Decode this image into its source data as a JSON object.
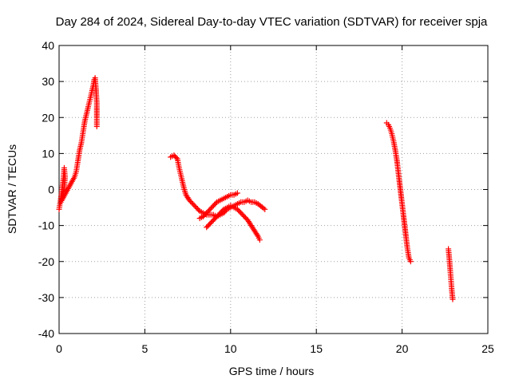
{
  "chart_data": {
    "type": "scatter",
    "title": "Day 284 of 2024, Sidereal Day-to-day VTEC variation (SDTVAR) for receiver spja",
    "xlabel": "GPS time / hours",
    "ylabel": "SDTVAR / TECUs",
    "xlim": [
      0,
      25
    ],
    "ylim": [
      -40,
      40
    ],
    "xticks": [
      0,
      5,
      10,
      15,
      20,
      25
    ],
    "yticks": [
      -40,
      -30,
      -20,
      -10,
      0,
      10,
      20,
      30,
      40
    ],
    "grid": true,
    "marker": "+",
    "color": "#ff0000",
    "series": [
      {
        "points": [
          [
            0.0,
            -5.5
          ],
          [
            0.05,
            -4
          ],
          [
            0.1,
            -2.5
          ],
          [
            0.15,
            -1
          ],
          [
            0.2,
            1
          ],
          [
            0.25,
            3
          ],
          [
            0.3,
            6
          ],
          [
            0.35,
            3.5
          ],
          [
            0.3,
            0.5
          ],
          [
            0.2,
            -2
          ],
          [
            0.1,
            -3.5
          ],
          [
            0.9,
            3.5
          ],
          [
            1.0,
            5
          ],
          [
            1.1,
            8
          ],
          [
            1.2,
            11
          ],
          [
            1.3,
            13
          ],
          [
            1.4,
            16
          ],
          [
            1.5,
            19
          ],
          [
            1.6,
            21
          ],
          [
            1.7,
            23
          ],
          [
            1.8,
            25
          ],
          [
            1.9,
            27
          ],
          [
            2.0,
            29
          ],
          [
            2.05,
            30.5
          ],
          [
            2.1,
            31
          ],
          [
            2.15,
            28
          ],
          [
            2.2,
            24
          ],
          [
            2.2,
            20
          ],
          [
            2.2,
            17.5
          ],
          [
            6.5,
            9
          ],
          [
            6.7,
            9.5
          ],
          [
            6.9,
            8.5
          ],
          [
            7.0,
            6
          ],
          [
            7.1,
            4
          ],
          [
            7.2,
            2
          ],
          [
            7.3,
            0
          ],
          [
            7.4,
            -1.5
          ],
          [
            7.6,
            -3
          ],
          [
            7.8,
            -4
          ],
          [
            8.0,
            -5
          ],
          [
            8.2,
            -6
          ],
          [
            8.4,
            -6.5
          ],
          [
            8.6,
            -7
          ],
          [
            8.8,
            -7
          ],
          [
            9.0,
            -7
          ],
          [
            9.2,
            -7.5
          ],
          [
            9.4,
            -7
          ],
          [
            9.6,
            -6.5
          ],
          [
            9.8,
            -5.5
          ],
          [
            10.0,
            -5
          ],
          [
            10.2,
            -4.5
          ],
          [
            10.4,
            -4
          ],
          [
            10.6,
            -3.5
          ],
          [
            10.8,
            -3.5
          ],
          [
            11.0,
            -3
          ],
          [
            11.2,
            -3.5
          ],
          [
            11.4,
            -3.5
          ],
          [
            11.6,
            -4
          ],
          [
            12.0,
            -5.5
          ],
          [
            8.2,
            -8
          ],
          [
            8.4,
            -7.5
          ],
          [
            8.6,
            -6.5
          ],
          [
            8.8,
            -5.5
          ],
          [
            9.0,
            -4.5
          ],
          [
            9.2,
            -3.5
          ],
          [
            9.4,
            -3
          ],
          [
            9.6,
            -2.5
          ],
          [
            9.8,
            -2
          ],
          [
            10.0,
            -1.5
          ],
          [
            10.2,
            -1.5
          ],
          [
            10.4,
            -1
          ],
          [
            8.6,
            -10.5
          ],
          [
            8.8,
            -9.5
          ],
          [
            9.0,
            -8.5
          ],
          [
            9.2,
            -7.5
          ],
          [
            9.4,
            -6.5
          ],
          [
            9.6,
            -5.5
          ],
          [
            9.8,
            -5
          ],
          [
            10.0,
            -4.5
          ],
          [
            10.2,
            -5
          ],
          [
            10.4,
            -5.5
          ],
          [
            10.6,
            -6.5
          ],
          [
            10.8,
            -7.5
          ],
          [
            11.0,
            -8.5
          ],
          [
            11.2,
            -10
          ],
          [
            11.4,
            -11.5
          ],
          [
            11.6,
            -13
          ],
          [
            11.7,
            -14
          ],
          [
            19.1,
            18.5
          ],
          [
            19.2,
            18
          ],
          [
            19.3,
            17
          ],
          [
            19.4,
            15.5
          ],
          [
            19.5,
            13.5
          ],
          [
            19.6,
            11
          ],
          [
            19.7,
            8
          ],
          [
            19.8,
            4
          ],
          [
            19.9,
            0
          ],
          [
            20.0,
            -4
          ],
          [
            20.1,
            -8
          ],
          [
            20.2,
            -12
          ],
          [
            20.3,
            -16
          ],
          [
            20.4,
            -19
          ],
          [
            20.5,
            -20
          ],
          [
            22.7,
            -16.5
          ],
          [
            22.75,
            -19
          ],
          [
            22.8,
            -22
          ],
          [
            22.85,
            -25
          ],
          [
            22.9,
            -28
          ],
          [
            22.95,
            -30.5
          ]
        ]
      }
    ]
  }
}
